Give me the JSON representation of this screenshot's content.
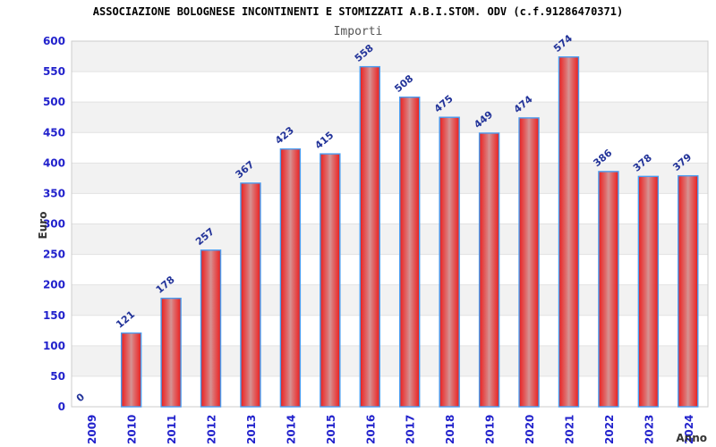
{
  "chart_data": {
    "type": "bar",
    "title": "ASSOCIAZIONE BOLOGNESE INCONTINENTI E STOMIZZATI A.B.I.STOM. ODV (c.f.91286470371)",
    "subtitle": "Importi",
    "xlabel": "Anno",
    "ylabel": "Euro",
    "categories": [
      "2009",
      "2010",
      "2011",
      "2012",
      "2013",
      "2014",
      "2015",
      "2016",
      "2017",
      "2018",
      "2019",
      "2020",
      "2021",
      "2022",
      "2023",
      "2024"
    ],
    "values": [
      0,
      121,
      178,
      257,
      367,
      423,
      415,
      558,
      508,
      475,
      449,
      474,
      574,
      386,
      378,
      379
    ],
    "ylim": [
      0,
      600
    ],
    "ytick_step": 50,
    "grid": "alternating horizontal bands every 50, gray/white, gray topmost",
    "legend": "none",
    "bar_value_labels_rotation_deg": -40,
    "x_tick_labels_rotation_deg": -90,
    "colors": {
      "bar_edge": "#c62222",
      "bar_bright": "#e83030",
      "bar_center": "#d49494",
      "bar_border": "#4a9cf0",
      "axis_tick_label": "#2222cc",
      "value_label": "#223399",
      "band_gray": "#f2f2f2",
      "band_white": "#ffffff",
      "plot_frame": "#cccccc",
      "gridline": "#e2e2e2",
      "title_color": "#000000",
      "subtitle_color": "#555555",
      "axis_title_color": "#333333"
    }
  }
}
